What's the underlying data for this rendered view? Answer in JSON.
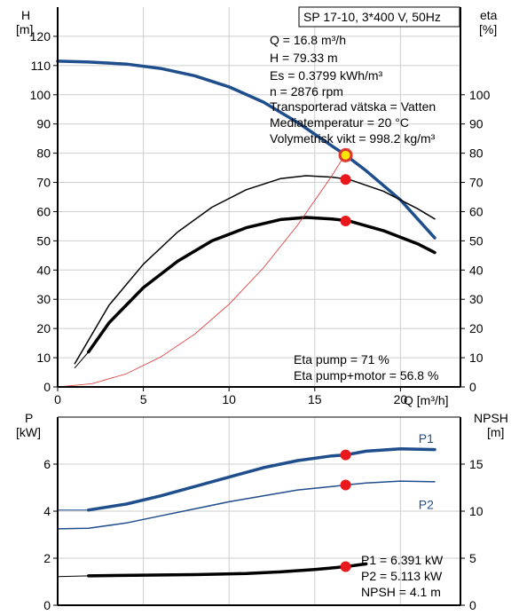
{
  "chart_data": [
    {
      "type": "line",
      "title": "SP 17-10, 3*400 V, 50Hz",
      "xlabel": "Q [m³/h]",
      "ylabel_left": [
        "H",
        "[m]"
      ],
      "ylabel_right": [
        "eta",
        "[%]"
      ],
      "xlim": [
        0,
        23.5
      ],
      "ylim": [
        0,
        130
      ],
      "x_ticks": [
        "0",
        "5",
        "10",
        "15",
        "20"
      ],
      "y_ticks_left": [
        "0",
        "10",
        "20",
        "30",
        "40",
        "50",
        "60",
        "70",
        "80",
        "90",
        "100",
        "110",
        "120"
      ],
      "y_ticks_right": [
        "0",
        "10",
        "20",
        "30",
        "40",
        "50",
        "60",
        "70",
        "80",
        "90",
        "100"
      ],
      "grid": true,
      "info_lines": [
        "Q = 16.8 m³/h",
        "H = 79.33 m",
        "Es = 0.3799 kWh/m³",
        "n = 2876 rpm",
        "Transporterad vätska = Vatten",
        "Mediatemperatur = 20 °C",
        "Volymetrisk vikt = 998.2 kg/m³"
      ],
      "eta_lines": [
        "Eta pump = 71 %",
        "Eta pump+motor = 56.8 %"
      ],
      "series": [
        {
          "key": "H",
          "color": "#1f4e8c",
          "width": 3.5,
          "points": [
            [
              0,
              111.5
            ],
            [
              1.8,
              111.2
            ],
            [
              4,
              110.5
            ],
            [
              6,
              109
            ],
            [
              8,
              106.5
            ],
            [
              10,
              102.7
            ],
            [
              12,
              97.5
            ],
            [
              14,
              90.5
            ],
            [
              16,
              82.5
            ],
            [
              16.8,
              79.33
            ],
            [
              18,
              74
            ],
            [
              20,
              64
            ],
            [
              22,
              51
            ]
          ]
        },
        {
          "key": "H-extension",
          "color": "#1f4e8c",
          "width": 1,
          "points": [
            [
              0,
              111.5
            ],
            [
              1.8,
              111.2
            ]
          ]
        },
        {
          "key": "eta pump",
          "color": "#000000",
          "width": 1.5,
          "points": [
            [
              1,
              8
            ],
            [
              3,
              28
            ],
            [
              5,
              42
            ],
            [
              7,
              53
            ],
            [
              9,
              61.5
            ],
            [
              11,
              67.5
            ],
            [
              13,
              71.3
            ],
            [
              14.5,
              72.3
            ],
            [
              16,
              71.8
            ],
            [
              17,
              71
            ],
            [
              19,
              67
            ],
            [
              21,
              61
            ],
            [
              22,
              57.5
            ]
          ]
        },
        {
          "key": "eta pump+motor",
          "color": "#000000",
          "width": 3.5,
          "points": [
            [
              1.8,
              12
            ],
            [
              3,
              22
            ],
            [
              5,
              34
            ],
            [
              7,
              43
            ],
            [
              9,
              50
            ],
            [
              11,
              54.5
            ],
            [
              13,
              57.3
            ],
            [
              14.5,
              58
            ],
            [
              16,
              57.5
            ],
            [
              17,
              56.8
            ],
            [
              19,
              53.5
            ],
            [
              21,
              49
            ],
            [
              22,
              46
            ]
          ]
        },
        {
          "key": "eta-extension",
          "color": "#000000",
          "width": 1,
          "points": [
            [
              1,
              6.5
            ],
            [
              1.8,
              12
            ]
          ]
        },
        {
          "key": "system curve",
          "color": "#e03030",
          "width": 0.8,
          "points": [
            [
              0,
              0
            ],
            [
              2,
              1.1
            ],
            [
              4,
              4.5
            ],
            [
              6,
              10.2
            ],
            [
              8,
              18.1
            ],
            [
              10,
              28.3
            ],
            [
              12,
              40.7
            ],
            [
              14,
              55.4
            ],
            [
              16,
              72.3
            ],
            [
              17,
              81.6
            ]
          ]
        }
      ],
      "markers": [
        {
          "x": 16.8,
          "y": 79.33,
          "kind": "duty"
        },
        {
          "x": 16.8,
          "y": 71,
          "kind": "dot"
        },
        {
          "x": 16.8,
          "y": 56.8,
          "kind": "dot"
        }
      ]
    },
    {
      "type": "line",
      "ylabel_left": [
        "P",
        "[kW]"
      ],
      "ylabel_right": [
        "NPSH",
        "[m]"
      ],
      "xlim": [
        0,
        23.5
      ],
      "ylim": [
        0,
        8
      ],
      "y_ticks_left": [
        "0",
        "2",
        "4",
        "6"
      ],
      "y_ticks_right": [
        "0",
        "5",
        "10",
        "15"
      ],
      "grid": true,
      "series": [
        {
          "name": "P1",
          "color": "#1f4e8c",
          "width": 3.5,
          "points": [
            [
              1.8,
              4.05
            ],
            [
              4,
              4.3
            ],
            [
              6,
              4.65
            ],
            [
              8,
              5.05
            ],
            [
              10,
              5.45
            ],
            [
              12,
              5.85
            ],
            [
              14,
              6.15
            ],
            [
              16,
              6.35
            ],
            [
              16.8,
              6.391
            ],
            [
              18,
              6.55
            ],
            [
              20,
              6.65
            ],
            [
              22,
              6.62
            ]
          ]
        },
        {
          "name": "P1-extension",
          "color": "#1f4e8c",
          "width": 1,
          "points": [
            [
              0,
              4.05
            ],
            [
              1.8,
              4.05
            ]
          ]
        },
        {
          "name": "P2",
          "color": "#1f4e8c",
          "width": 1.5,
          "points": [
            [
              0,
              3.25
            ],
            [
              1.8,
              3.27
            ],
            [
              4,
              3.5
            ],
            [
              6,
              3.8
            ],
            [
              8,
              4.1
            ],
            [
              10,
              4.4
            ],
            [
              12,
              4.65
            ],
            [
              14,
              4.9
            ],
            [
              16,
              5.05
            ],
            [
              16.8,
              5.113
            ],
            [
              18,
              5.2
            ],
            [
              20,
              5.28
            ],
            [
              22,
              5.25
            ]
          ]
        },
        {
          "name": "NPSH",
          "color": "#000000",
          "width": 3.5,
          "points": [
            [
              1.8,
              1.25
            ],
            [
              5,
              1.28
            ],
            [
              8,
              1.3
            ],
            [
              11,
              1.35
            ],
            [
              13,
              1.42
            ],
            [
              15,
              1.52
            ],
            [
              16.8,
              1.64
            ],
            [
              18,
              1.76
            ]
          ]
        },
        {
          "name": "NPSH-extension",
          "color": "#000000",
          "width": 1,
          "points": [
            [
              0,
              1.22
            ],
            [
              1.8,
              1.25
            ]
          ]
        }
      ],
      "series_labels": [
        {
          "text": "P1",
          "x": 21.5,
          "y": 6.9
        },
        {
          "text": "P2",
          "x": 21.5,
          "y": 4.1
        }
      ],
      "markers": [
        {
          "x": 16.8,
          "y": 6.391,
          "kind": "dot"
        },
        {
          "x": 16.8,
          "y": 5.113,
          "kind": "dot"
        },
        {
          "x": 16.8,
          "y": 1.64,
          "kind": "dot"
        }
      ],
      "info_lines": [
        "P1 = 6.391 kW",
        "P2 = 5.113 kW",
        "NPSH = 4.1 m"
      ]
    }
  ]
}
